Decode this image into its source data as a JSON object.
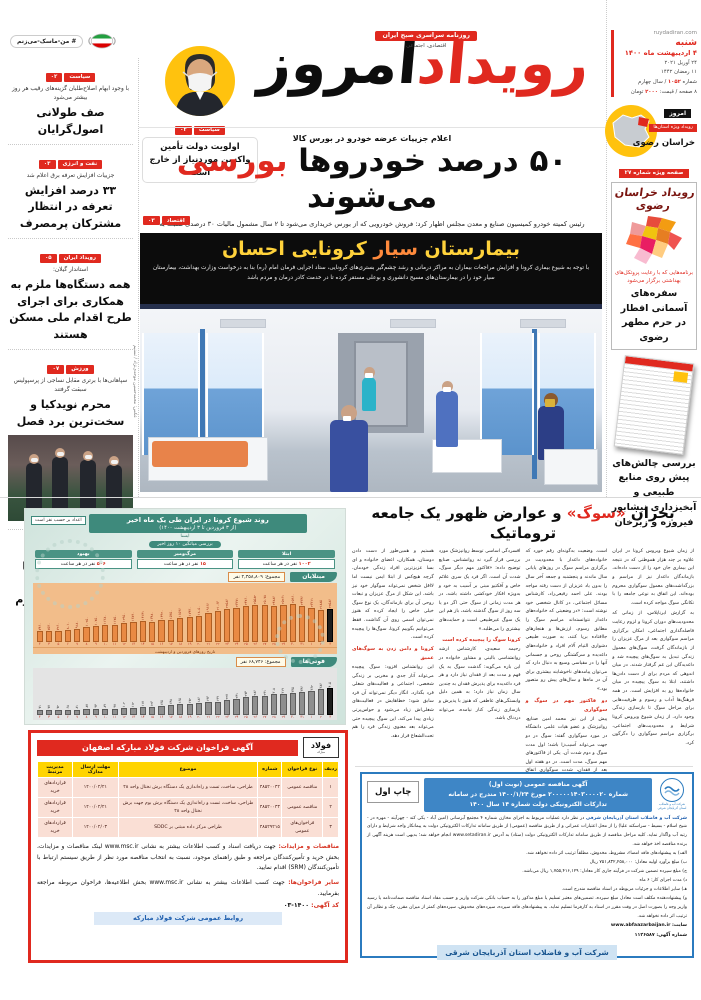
{
  "masthead": {
    "site": "ruydadiran.com",
    "weekday": "شنبه",
    "date_fa": "۴ اردیبهشت ماه ۱۴۰۰",
    "date_en": "۲۴ آوریل ۲۰۲۱",
    "date_hijri": "۱۱ رمضان ۱۴۴۲",
    "issue_pre": "شماره ",
    "issue_num": "۱۰۵۲",
    "issue_post": " / سال چهارم",
    "pages_pre": "۸ صفحه / قیمت: ",
    "price_num": "۲۰۰۰",
    "pages_post": " تومان",
    "logo_red": "رویداد",
    "logo_black": "امروز",
    "tagline1": "روزنامه سراسری صبح ایران",
    "tagline2": "اقتصادی، اجتماعی",
    "hashtag": "# من-ماسک-می‌زنم",
    "today_label": "امروز",
    "special_label": "رویداد ویژه استان‌ها",
    "province": "خراسان رضوی"
  },
  "top_story": {
    "tag": "سیاست",
    "page": "۰۲",
    "title": "اولویت دولت تأمین واکسن موردنیاز از خارج است"
  },
  "left_column": {
    "items": [
      {
        "tag": "سیاست",
        "page": "۰۲",
        "kicker": "با وجود ابهام اصلاح‌طلبان گزینه‌های رقیب هر روز بیشتر می‌شود",
        "title": "صف طولانی اصول‌گرایان"
      },
      {
        "tag": "نفت و انرژی",
        "page": "۰۳",
        "kicker": "جزییات افزایش تعرفه برق اعلام شد",
        "title": "۳۳ درصد افزایش تعرفه در انتظار مشترکان پرمصرف"
      },
      {
        "tag": "رویداد ایران",
        "page": "۰۵",
        "kicker": "استاندار گیلان:",
        "title": "همه دستگاه‌ها ملزم به همکاری برای اجرای طرح اقدام ملی مسکن هستند"
      },
      {
        "tag": "ورزش",
        "page": "۰۷",
        "kicker": "سپاهانی‌ها با برتری مقابل نساجی از پرسپولیس سبقت گرفتند",
        "title": "محرم نویدکیا و سخت‌ترین برد فصل"
      },
      {
        "tag": "صفحه آخر",
        "page": "۰۸",
        "kicker": "",
        "title": "از افطار زائران تا شمع روشنایی شب‌های قدر در حرم مطهر رضوی"
      }
    ]
  },
  "lead": {
    "kicker": "اعلام جزییات عرضه خودرو در بورس کالا",
    "title_a": "۵۰ درصد خودروها ",
    "title_red": "بورسی",
    "title_b": " می‌شوند",
    "subtext": "رئیس کمیته خودرو کمیسیون صنایع و معدن مجلس اظهار کرد: فروش خودرویی که از بورس خریداری می‌شود تا ۲ سال مشمول مالیات ۳۰ درصدی نسبت به قیمت خریداری شده می‌شود",
    "tag": "اقتصاد",
    "page": "۰۳"
  },
  "banner": {
    "title_a": "بیمارستان ",
    "title_mid": "سیار",
    "title_b": " کرونایی احسان",
    "body": "با توجه به شیوع بیماری کرونا و افزایش مراجعات بیماران به مراکز درمانی و رشد چشم‌گیر بستری‌های کرونایی، ستاد اجرایی فرمان امام (ره) بنا به درخواست وزارت بهداشت، بیمارستان سیار خود را در بیمارستان‌های مسیح دانشوری و بوعلی مستقر کرده تا در خدمت کادر درمان و مردم باشد"
  },
  "photo": {
    "credit": "عکس: محمدحسین موحدی‌نژاد / تسنیم"
  },
  "sidebar": {
    "special_tag": "صفحه ویژه شماره ۲۷",
    "box_title": "رویداد خراسان رضوی",
    "kicker": "برنامه‌هایی که با رعایت پروتکل‌های بهداشتی برگزار می‌شود",
    "headline1": "سفره‌های آسمانی افطار در حرم مطهر رضوی",
    "headline2": "بررسی چالش‌های پیش روی منابع طبیعی و آبخیزداری نیشابور فیروزه و زبرخان"
  },
  "infographic": {
    "title": "روند شیوع کرونا در ایران طی یک ماه اخیر",
    "subtitle": "(از ۳ فروردین تا ۳ اردیبهشت ۱۴۰۰)",
    "source": "ایسنا",
    "note": "اعداد بر حسب نفر است",
    "avg_label": "بررسی میانگین ۱۰ روز اخیر",
    "stats": [
      {
        "label": "ابتلا",
        "value": "۱۰۰۲",
        "unit": " نفر در هر ساعت"
      },
      {
        "label": "مرگ‌ومیر",
        "value": "۱۵",
        "unit": " نفر در هر ساعت"
      },
      {
        "label": "بهبود",
        "value": "۵۰۶",
        "unit": " نفر در هر ساعت"
      }
    ],
    "cases_label": "مبتلایان",
    "cases_total": "مجموع: ۲,۳۵۸,۸۰۹ نفر",
    "deaths_label": "فوتی‌ها",
    "deaths_total": "مجموع: ۶۸,۷۴۶ نفر",
    "axis_label": "تاریخ روزهای فروردین و اردیبهشت"
  },
  "chart_data": [
    {
      "type": "bar",
      "title": "مبتلایان (موارد روزانه ابتلا به کرونا در ایران)",
      "categories": [
        "۳",
        "۴",
        "۵",
        "۶",
        "۷",
        "۸",
        "۹",
        "۱۰",
        "۱۱",
        "۱۲",
        "۱۳",
        "۱۴",
        "۱۵",
        "۱۶",
        "۱۷",
        "۱۸",
        "۱۹",
        "۲۰",
        "۲۱",
        "۲۲",
        "۲۳",
        "۲۴",
        "۲۵",
        "۲۶",
        "۲۷",
        "۲۸",
        "۲۹",
        "۳۰",
        "۳۱",
        "۱",
        "۲",
        "۳"
      ],
      "values": [
        7460,
        7530,
        7260,
        8010,
        9180,
        10250,
        10750,
        11380,
        11750,
        12950,
        13890,
        14141,
        13480,
        14920,
        15350,
        16596,
        17430,
        18050,
        19666,
        21063,
        22586,
        23371,
        24760,
        25582,
        25078,
        24886,
        25261,
        25960,
        24346,
        23311,
        21885,
        22586
      ],
      "xlabel": "تاریخ روزهای فروردین و اردیبهشت",
      "ylim": [
        0,
        26000
      ],
      "highlight_last": true
    },
    {
      "type": "bar",
      "title": "فوتی‌ها (موارد روزانه فوت ناشی از کرونا در ایران)",
      "categories": [
        "۳",
        "۴",
        "۵",
        "۶",
        "۷",
        "۸",
        "۹",
        "۱۰",
        "۱۱",
        "۱۲",
        "۱۳",
        "۱۴",
        "۱۵",
        "۱۶",
        "۱۷",
        "۱۸",
        "۱۹",
        "۲۰",
        "۲۱",
        "۲۲",
        "۲۳",
        "۲۴",
        "۲۵",
        "۲۶",
        "۲۷",
        "۲۸",
        "۲۹",
        "۳۰",
        "۳۱",
        "۱",
        "۲",
        "۳"
      ],
      "values": [
        71,
        77,
        72,
        68,
        81,
        87,
        94,
        89,
        97,
        102,
        112,
        117,
        123,
        135,
        148,
        165,
        172,
        186,
        193,
        199,
        227,
        241,
        274,
        286,
        291,
        308,
        319,
        335,
        346,
        362,
        386,
        405
      ],
      "xlabel": "تاریخ روزهای فروردین و اردیبهشت",
      "ylim": [
        0,
        420
      ],
      "highlight_last": true
    }
  ],
  "article": {
    "title_a": "بحران ",
    "title_red": "«سوگ»",
    "title_b": " و عوارض ظهور یک جامعه تروماتیک",
    "cols": [
      {
        "p1": "از زمان شیوع ویروس کرونا در ایران علاوه بر چند هزار هموطنی که در نتیجه این بیماری جان خود را از دست داده‌اند، بازماندگان داغدار نیز از مراسم و بزرگداشت‌های معمول سوگواری محروم بوده‌اند. این اتفاق به نوعی جامعه را با تکانگی سوگ مواجه کرده است.",
        "sub": "",
        "p2": "به گزارش ایرناپلاس، از زمانی که محدودیت‌های دوران کرونا و لزوم رعایت فاصله‌گذاری اجتماعی، امکان برگزاری مراسم سوگواری بعد از مرگ عزیزان را از بازماندگان گرفت، سوگ‌های معمول زندگی تبدیل به سوگ‌های پیچیده شد و داغدیدگان این غم گرفتار شدند. در میان اندوهی که مردم برای از دست دادن‌ها داشتند، ابتلا به سوگ پیچیده در میان خانواده‌ها رو به افزایش است. در همه فرهنگ‌ها آداب و رسوم و ظرفیت‌هایی برای مراحل سوگ تا بازسازی زندگی وجود دارد. از زمان شیوع ویروس کرونا شرایط و محدودیت‌های اجتماعی، برگزاری مراسم سوگواری را دگرگون کرد."
      },
      {
        "p1": "است. وضعیت به‌گونه‌ای رقم خورد که خانواده‌های داغدار با محدودیت در برگزاری مراسم سوگ در روزهای پایانی سال ماندند و پنجشنبه و جمعه آخر سال را بدون یاد عزیزان از دست رفته مواجه بودند. علی احمد رفیعی‌راد، کارشناس مسائل اجتماعی، در کانال شخصی خود نوشته است: «در وضعیتی که خانواده‌های داغدار نتوانسته‌اند مراسم سوگ را مطابق رسوم، ارزش‌ها و هنجارهای جاافتاده برپا کنند، به صورت طبیعی دشواری التیام آلام افراد و خانواده‌های داغدیده و سرگشتگی روحی و جسمانی آنها را در مقیاسی وسیع به دنبال دارد که می‌توان پیامدهای ناخوشایند بیشتری برای آن در ماه‌ها و سال‌های پیش رو متصور بود.»",
        "sub": "دو فاکتور مهم در سوگ و سوگواری",
        "p2": "پیش از این نیز محمد امین صنایع، روانپزشک و عضو هیات علمی دانشگاه در مورد سوگواری گفته: سوگ در دو جهت می‌تواند آسیب‌زا باشد؛ اول مدت سوگ و دوم شدت آن. یکی از فاکتورهای مهم سوگ، مدت است. در دو هفته اول بعد از فقدان، شدت سوگواری اتفاق می‌افتد اما بعد از دو هفته معمولا سیر نزولی طی می‌کند و بعد از یک ماه باید بازگشت به زندگی شکل گیرد."
      },
      {
        "p1": "افسردگی اساسی توسط روانپزشک مورد بررسی قرار گیرد نه روانشناس. صنایع توضیح داده: «فاکتور مهم دیگر سوگ، شدت آن است. اگر فرد یک سری علائم خاص و آفکتیو مبنی بر آسیب به خود و به‌ویژه افکار خودکشی داشته باشد، در هر مدت زمانی از سوگ حتی اگر دو یا سه روز از سوگ گذشته باشد، باز هم این یک سوگ غیرطبیعی است و حمایت‌های بیشتری را می‌طلبد.»",
        "sub": "کرونا سوگ را پیچیده کرده است",
        "p2": "رحیمه سعیدی، کارشناس ارشد روانشناسی بالینی و مشاور خانواده در این باره می‌گوید: گذشت سوگ به یک فهم و مدت بعد از فقدان نیاز دارد و هر فرد داغدیده برای پذیرش فقدان به چندین سال زمان نیاز دارد؛ به همین دلیل وابستگی‌های عاطفی که هنوز با پذیرش و بازسازی زندگی کنار نیامده، می‌تواند دردناک باشد."
      },
      {
        "p1": "هستیم و همین‌طور از دست دادن دوستان، همکاران، اعضای خانواده و ای بسا عزیزترین افراد زندگی خودمان. گرچه هیچ‌کس از ابتلا ایمن نیست اما لااقل شخص نمی‌تواند سوگوار خود نیز باشد. این شکل از مرگ عزیزان و تبعات روحی آن برای بازماندگان، یک نوع سوگ خیلی خاص را ایجاد کرده که هنوز نمی‌توان اسمی روی آن گذاشت. فقط می‌توانیم بگوییم کرونا، سوگ‌ها را پیچیده کرده است.",
        "sub": "کرونا و دامن زدن به سوگ‌های عمیق",
        "p2": "این روانشناس افزود: سوگ پیچیده می‌تواند آثار جدی و مخربی بر زندگی شخصی، اجتماعی و فعالیت‌های شغلی فرد بگذارد. انگار دیگر نمی‌تواند آن فرد سابق شود؛ خطاهایش در فعالیت‌های شغلی‌اش زیاد می‌شود و حواس‌پرتی زیادی پیدا می‌کند. این سوگ پیچیده حتی می‌تواند بعد معنوی زندگی فرد را هم تحت‌الشعاع قرار دهد."
      }
    ]
  },
  "steel_ad": {
    "title": "آگهی فراخوان شرکت فولاد مبارکه اصفهان",
    "logo_text": "فولاد",
    "logo_sub": "مبارکه",
    "table": {
      "headers": [
        "ردیف",
        "نوع فراخوان",
        "شماره",
        "موضوع",
        "مهلت ارسال مدارک",
        "مدیریت مرتبط"
      ],
      "rows": [
        {
          "row": "۱",
          "type": "مناقصه عمومی",
          "num": "۴۸۵۲۰۰۴۲",
          "subject": "طراحی، ساخت، تست و راه‌اندازی یک دستگاه برش نختال واحد ۴۸",
          "deadline": "۱۴۰۰/۰۲/۲۱",
          "dept": "قراردادهای خرید"
        },
        {
          "row": "۲",
          "type": "مناقصه عمومی",
          "num": "۴۸۵۲۰۰۴۳",
          "subject": "طراحی، ساخت، تست و راه‌اندازی یک دستگاه برش بوم جهت برش نختال واحد ۴۸",
          "deadline": "۱۴۰۰/۰۲/۲۱",
          "dept": "قراردادهای خرید"
        },
        {
          "row": "۳",
          "type": "فراخوان‌های عمومی",
          "num": "۴۸۵۲۹۲۱۵",
          "subject": "طراحی مرکز داده مبتنی بر SDDC",
          "deadline": "۱۴۰۰/۰۲/۰۳",
          "dept": "قراردادهای خرید"
        }
      ]
    },
    "p1_lead": "مناقصات و مزایدات:",
    "p1": " جهت دریافت اسناد و کسب اطلاعات بیشتر به نشانی www.msc.ir لینک مناقصات و مزایدات، بخش خرید و تأمین‌کنندگان مراجعه و طبق راهنمای موجود، نسبت به انتخاب مناقصه مورد نظر از طریق سیستم ارتباط با تأمین‌کنندگان (SRM) اقدام نمایید.",
    "p2_lead": "سایر فراخوان‌ها:",
    "p2": " جهت کسب اطلاعات بیشتر به نشانی www.msc.ir بخش اطلاعیه‌ها، فراخوان مربوطه مراجعه بفرمایید.",
    "code_lead": "کد آگهی:",
    "code": " ۱۴۰۰-۰۳",
    "footer": "روابط عمومی شرکت فولاد مبارکه"
  },
  "water_ad": {
    "print_label": "چاپ اول",
    "h1": "آگهی مناقصه عمومی (نوبت اول)",
    "h2": "شماره ۲۰۰۰۰۰۱۴۰۳۰۰۰۰۲۰ مورخ ۱۴۰۰/۱/۲۴ مندرج در سامانه",
    "h3": "تدارکات الکترونیکی دولت شماره ۱۴ سال ۱۴۰۰",
    "lead": "شرکت آب و فاضلاب استان آذربایجان شرقی",
    "p1": " در نظر دارد عملیات مربوط به اجرای مخازن شماره ۴ مجتمع آبرسانی (امین آباد - یکی کند - چهرآیند - مهره در - شیخ اسلام - بسیط - سراسکند علیا) را از محل اعتبارات عمرانی و از طریق مناقصه (عمومی) از طریق سامانه تدارکات الکترونیکی دولت به پیمانکار واجد شرایط و دارای رتبه آب واگذار نماید. کلیه مراحل مناقصه از طریق سامانه تدارکات الکترونیکی دولت (ستاد) به آدرس www.setadiran.ir انجام خواهد شد؛ بدیهی است هزینه آگهی از برنده مناقصه اخذ خواهد شد.",
    "items": [
      "الف) به پیشنهادهای فاقد امضاء، مشروط، مخدوش، مطلقاً ترتیب اثر داده نخواهد شد.",
      "ب) مبلغ برآورد اولیه معادل: ۷۵۱,۸۳۲,۲۵۸,۰۰۰ ریال",
      "ج) مبلغ سپرده تضمین شرکت در فرآیند جاری کار معادل: ۱,۷۵۵,۴۱۶,۱۲۹ ریال می‌باشد.",
      "د) مدت اجرای کار: ۶ ماه",
      "هـ) سایر اطلاعات و جزئیات مربوطه در اسناد مناقصه مندرج است.",
      "و) پیشنهاددهنده مکلف است معادل مبلغ سپرده، تضمین‌های معتبر تسلیم یا مبلغ مذکور را به حساب بانکی شرکت واریز و حسب مفاد اسناد مناقصه ضمانت‌نامه یا رسید واریز وجه را بصورت اصل در وقت مقرر در اسناد به کارفرما تسلیم نماید. به پیشنهادهای فاقد سپرده، سپرده‌های مخدوش، سپرده‌های کمتر از میزان مقرر، چک و نظایر آن ترتیب اثر داده نخواهد شد."
    ],
    "site": "سایت: www.abfaazarbaijan.ir",
    "code": "شماره آگهی: ۱۱۲۶۵۸۷",
    "footer": "شرکت آب و فاضلاب استان آذربایجان شرقی"
  }
}
